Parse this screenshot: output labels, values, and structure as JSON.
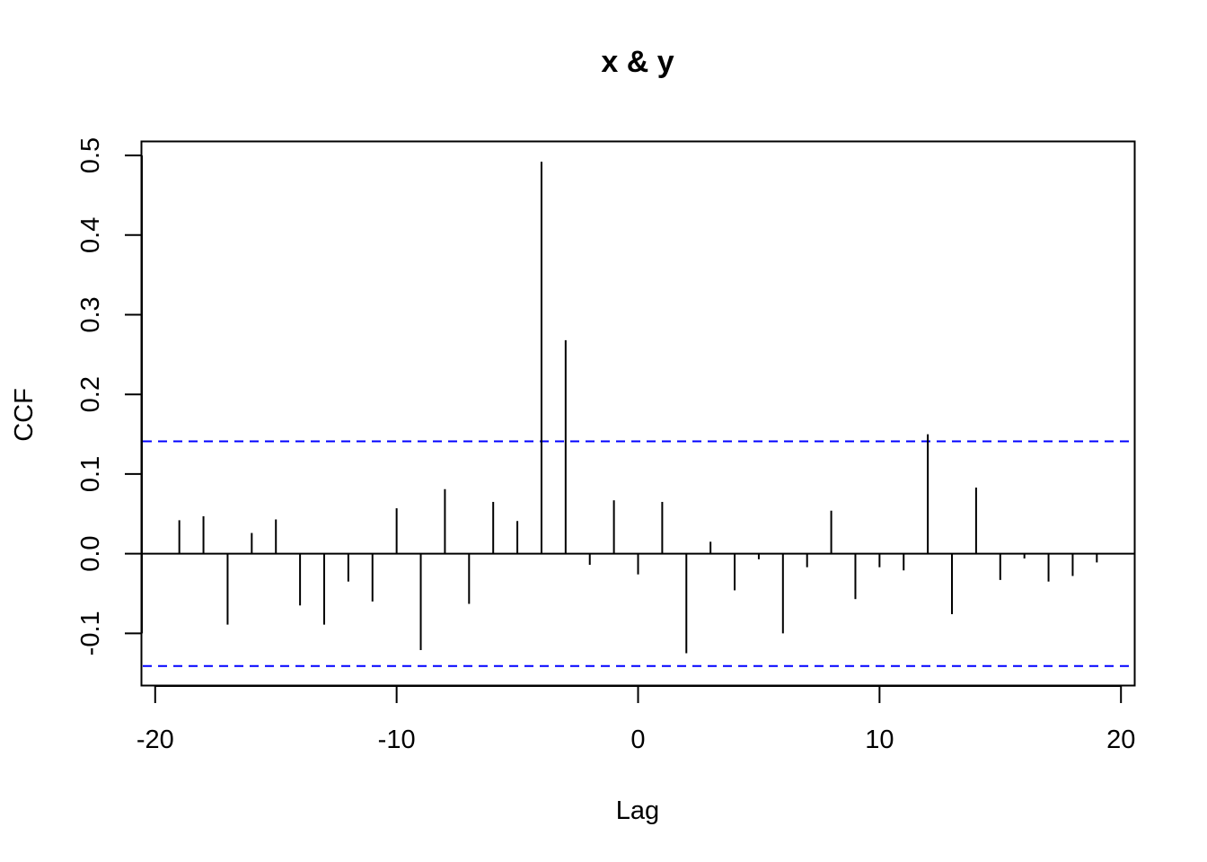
{
  "chart_data": {
    "type": "bar",
    "title": "x & y",
    "xlabel": "Lag",
    "ylabel": "CCF",
    "xlim": [
      -20.55,
      20.55
    ],
    "ylim": [
      -0.165,
      0.517
    ],
    "x_ticks": [
      -20,
      -10,
      0,
      10,
      20
    ],
    "x_tick_labels": [
      "-20",
      "-10",
      "0",
      "10",
      "20"
    ],
    "y_ticks": [
      -0.1,
      0.0,
      0.1,
      0.2,
      0.3,
      0.4,
      0.5
    ],
    "y_tick_labels": [
      "-0.1",
      "0.0",
      "0.1",
      "0.2",
      "0.3",
      "0.4",
      "0.5"
    ],
    "confidence_band": [
      -0.141,
      0.141
    ],
    "band_color": "#0000ff",
    "bar_color": "#000000",
    "lags": [
      -19,
      -18,
      -17,
      -16,
      -15,
      -14,
      -13,
      -12,
      -11,
      -10,
      -9,
      -8,
      -7,
      -6,
      -5,
      -4,
      -3,
      -2,
      -1,
      0,
      1,
      2,
      3,
      4,
      5,
      6,
      7,
      8,
      9,
      10,
      11,
      12,
      13,
      14,
      15,
      16,
      17,
      18,
      19
    ],
    "values": [
      0.042,
      0.047,
      -0.089,
      0.026,
      0.043,
      -0.065,
      -0.089,
      -0.035,
      -0.06,
      0.057,
      -0.121,
      0.081,
      -0.063,
      0.065,
      0.041,
      0.492,
      0.268,
      -0.014,
      0.067,
      -0.026,
      0.065,
      -0.125,
      0.015,
      -0.046,
      -0.007,
      -0.1,
      -0.017,
      0.054,
      -0.057,
      -0.017,
      -0.021,
      0.15,
      -0.076,
      0.083,
      -0.033,
      -0.006,
      -0.035,
      -0.028,
      -0.011
    ]
  }
}
